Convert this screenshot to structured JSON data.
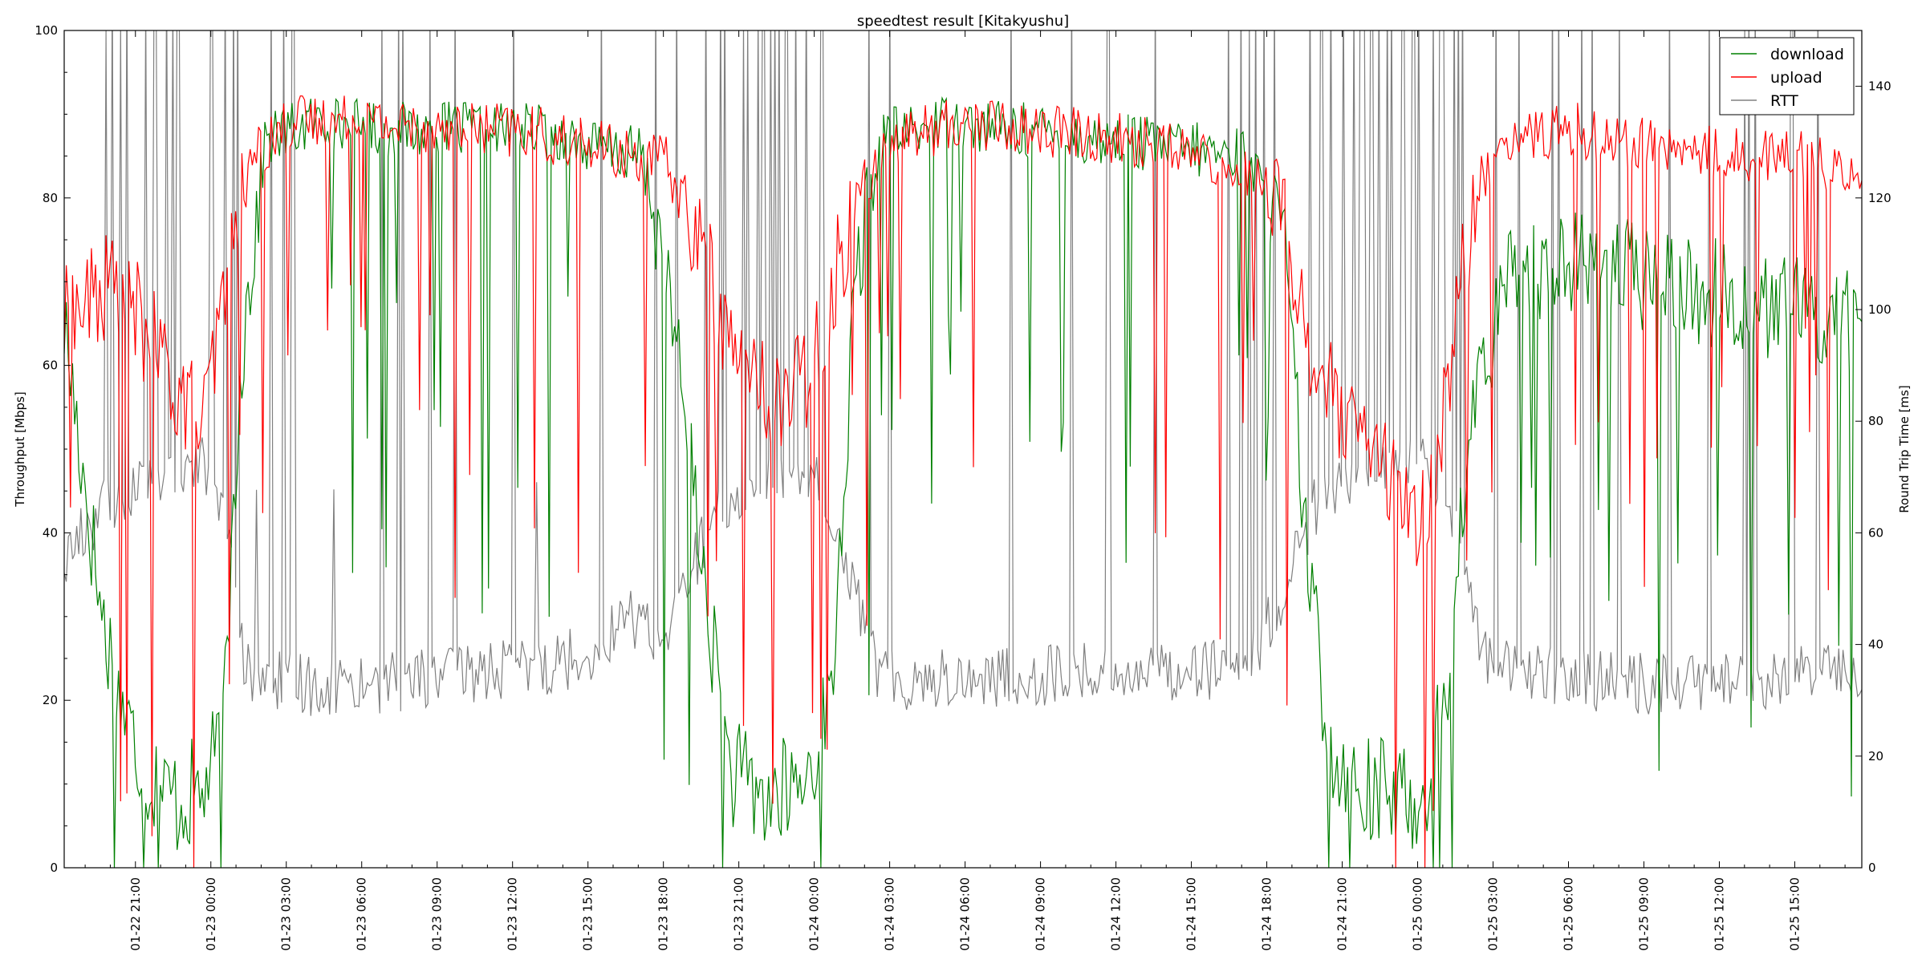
{
  "chart_data": {
    "type": "line",
    "title": "speedtest result [Kitakyushu]",
    "ylabel": "Throughput [Mbps]",
    "y2label": "Round Trip Time [ms]",
    "ylim": [
      0,
      100
    ],
    "y2lim": [
      0,
      150
    ],
    "yticks": [
      "0",
      "20",
      "40",
      "60",
      "80",
      "100"
    ],
    "y2ticks": [
      "0",
      "20",
      "40",
      "60",
      "80",
      "100",
      "120",
      "140"
    ],
    "xlim_hours": [
      0,
      71.5
    ],
    "x_start_label": "01-22 18:10",
    "xticks": [
      "01-22 21:00",
      "01-23 00:00",
      "01-23 03:00",
      "01-23 06:00",
      "01-23 09:00",
      "01-23 12:00",
      "01-23 15:00",
      "01-23 18:00",
      "01-23 21:00",
      "01-24 00:00",
      "01-24 03:00",
      "01-24 06:00",
      "01-24 09:00",
      "01-24 12:00",
      "01-24 15:00",
      "01-24 18:00",
      "01-24 21:00",
      "01-25 00:00",
      "01-25 03:00",
      "01-25 06:00",
      "01-25 09:00",
      "01-25 12:00",
      "01-25 15:00"
    ],
    "legend_position": "top-right",
    "series": [
      {
        "name": "download",
        "color": "#008000",
        "axis": "left",
        "profile": [
          [
            0,
            65
          ],
          [
            1.5,
            30
          ],
          [
            2.5,
            17
          ],
          [
            3.5,
            10
          ],
          [
            4.5,
            8
          ],
          [
            5.5,
            9
          ],
          [
            6.3,
            15
          ],
          [
            7.0,
            60
          ],
          [
            8.0,
            87
          ],
          [
            10,
            89
          ],
          [
            13,
            88
          ],
          [
            16,
            88
          ],
          [
            19,
            88
          ],
          [
            21,
            86
          ],
          [
            23,
            85
          ],
          [
            24.0,
            70
          ],
          [
            25.5,
            33
          ],
          [
            26.5,
            11
          ],
          [
            28,
            8
          ],
          [
            29.5,
            10
          ],
          [
            30.5,
            20
          ],
          [
            31.5,
            70
          ],
          [
            32.5,
            87
          ],
          [
            35,
            89
          ],
          [
            38,
            88
          ],
          [
            41,
            87
          ],
          [
            44,
            86
          ],
          [
            47,
            85
          ],
          [
            48.5,
            75
          ],
          [
            49.5,
            35
          ],
          [
            50.3,
            14
          ],
          [
            52,
            9
          ],
          [
            54,
            8
          ],
          [
            55,
            20
          ],
          [
            56,
            55
          ],
          [
            57.5,
            70
          ],
          [
            60,
            72
          ],
          [
            63,
            70
          ],
          [
            66,
            68
          ],
          [
            69,
            66
          ],
          [
            71.5,
            65
          ]
        ]
      },
      {
        "name": "upload",
        "color": "#ff0000",
        "axis": "left",
        "profile": [
          [
            0,
            65
          ],
          [
            2,
            70
          ],
          [
            4,
            60
          ],
          [
            5.5,
            52
          ],
          [
            6.5,
            70
          ],
          [
            7.5,
            85
          ],
          [
            9,
            89
          ],
          [
            12,
            89
          ],
          [
            15,
            88
          ],
          [
            18,
            88
          ],
          [
            21,
            86
          ],
          [
            24,
            84
          ],
          [
            25.5,
            72
          ],
          [
            26.5,
            62
          ],
          [
            28,
            55
          ],
          [
            29.5,
            58
          ],
          [
            30.5,
            68
          ],
          [
            31.5,
            80
          ],
          [
            33,
            87
          ],
          [
            36,
            89
          ],
          [
            39,
            88
          ],
          [
            42,
            87
          ],
          [
            45,
            85
          ],
          [
            47.5,
            82
          ],
          [
            48.5,
            78
          ],
          [
            49.5,
            62
          ],
          [
            51,
            52
          ],
          [
            52.5,
            48
          ],
          [
            53.5,
            40
          ],
          [
            54.5,
            45
          ],
          [
            55.5,
            70
          ],
          [
            57,
            87
          ],
          [
            60,
            88
          ],
          [
            63,
            86
          ],
          [
            66,
            85
          ],
          [
            69,
            85
          ],
          [
            71.5,
            82
          ]
        ]
      },
      {
        "name": "RTT",
        "color": "#808080",
        "axis": "right",
        "profile": [
          [
            0,
            55
          ],
          [
            1.5,
            65
          ],
          [
            3,
            70
          ],
          [
            4.5,
            72
          ],
          [
            5.5,
            75
          ],
          [
            6.5,
            60
          ],
          [
            7.2,
            35
          ],
          [
            10,
            33
          ],
          [
            14,
            34
          ],
          [
            18,
            36
          ],
          [
            20.5,
            38
          ],
          [
            22.5,
            45
          ],
          [
            24,
            42
          ],
          [
            25.5,
            60
          ],
          [
            27,
            68
          ],
          [
            28.5,
            72
          ],
          [
            30,
            72
          ],
          [
            31.5,
            50
          ],
          [
            32.5,
            34
          ],
          [
            36,
            34
          ],
          [
            40,
            35
          ],
          [
            44,
            36
          ],
          [
            47,
            36
          ],
          [
            48.5,
            50
          ],
          [
            50,
            68
          ],
          [
            52,
            73
          ],
          [
            54,
            75
          ],
          [
            55.5,
            60
          ],
          [
            56.5,
            38
          ],
          [
            60,
            34
          ],
          [
            64,
            33
          ],
          [
            68,
            34
          ],
          [
            71.5,
            36
          ]
        ]
      }
    ]
  }
}
